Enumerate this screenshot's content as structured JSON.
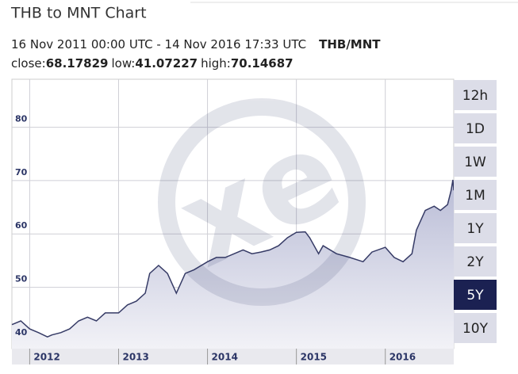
{
  "header": {
    "title": "THB to MNT Chart",
    "period": "16 Nov 2011 00:00 UTC - 14 Nov 2016 17:33 UTC",
    "pair": "THB/MNT",
    "stats": [
      {
        "label": "close:",
        "value": 68.17829
      },
      {
        "label": "low:",
        "value": 41.07227
      },
      {
        "label": "high:",
        "value": 70.14687
      }
    ]
  },
  "range_buttons": [
    "12h",
    "1D",
    "1W",
    "1M",
    "1Y",
    "2Y",
    "5Y",
    "10Y"
  ],
  "selected_range": "5Y",
  "chart_data": {
    "type": "area",
    "color": "#363b66",
    "grid": true,
    "xlim": [
      2011.8,
      2016.77
    ],
    "xticks": [
      2012,
      2013,
      2014,
      2015,
      2016
    ],
    "ylim": [
      38.5,
      89
    ],
    "yticks": [
      40,
      50,
      60,
      70,
      80
    ],
    "series": [
      {
        "name": "THB/MNT",
        "x": [
          2011.8,
          2011.9,
          2012.0,
          2012.1,
          2012.2,
          2012.25,
          2012.35,
          2012.45,
          2012.55,
          2012.65,
          2012.75,
          2012.85,
          2013.0,
          2013.1,
          2013.2,
          2013.3,
          2013.35,
          2013.45,
          2013.55,
          2013.65,
          2013.75,
          2013.85,
          2014.0,
          2014.1,
          2014.2,
          2014.3,
          2014.4,
          2014.5,
          2014.6,
          2014.7,
          2014.8,
          2014.9,
          2015.0,
          2015.1,
          2015.15,
          2015.25,
          2015.3,
          2015.45,
          2015.6,
          2015.75,
          2015.85,
          2016.0,
          2016.1,
          2016.2,
          2016.3,
          2016.35,
          2016.45,
          2016.55,
          2016.62,
          2016.7,
          2016.74,
          2016.76,
          2016.77
        ],
        "values": [
          43,
          43.7,
          42.2,
          41.5,
          40.7,
          41.07,
          41.5,
          42.2,
          43.7,
          44.4,
          43.7,
          45.2,
          45.2,
          46.7,
          47.4,
          48.9,
          52.6,
          54.1,
          52.6,
          48.9,
          52.6,
          53.3,
          54.8,
          55.6,
          55.6,
          56.3,
          57,
          56.3,
          56.6,
          57,
          57.8,
          59.3,
          60.3,
          60.4,
          59.3,
          56.3,
          57.8,
          56.3,
          55.6,
          54.8,
          56.6,
          57.5,
          55.6,
          54.8,
          56.3,
          60.7,
          64.4,
          65.2,
          64.4,
          65.5,
          68.1,
          70.14,
          68.18
        ]
      }
    ]
  }
}
